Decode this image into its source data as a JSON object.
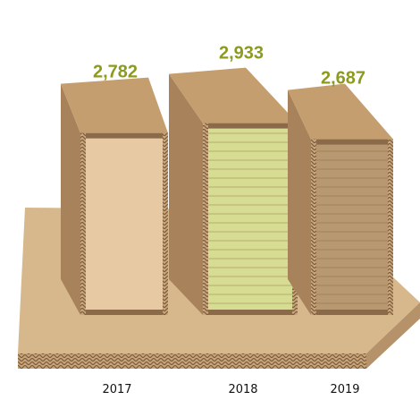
{
  "colors": {
    "value_label": "#8c9a1e",
    "cardboard": "#c59e70",
    "cardboard_dark": "#a7825a",
    "cardboard_light": "#d9b890",
    "pallet": "#d7b88c",
    "face_2017": "#e7c9a3",
    "face_2018": "#d7dc93",
    "face_2019": "#b79871"
  },
  "chart_data": {
    "type": "bar",
    "categories": [
      "2017",
      "2018",
      "2019"
    ],
    "values": [
      2782,
      2933,
      2687
    ],
    "value_labels": [
      "2,782",
      "2,933",
      "2,687"
    ],
    "title": "",
    "xlabel": "",
    "ylabel": "",
    "legend": "none",
    "grid": false
  }
}
